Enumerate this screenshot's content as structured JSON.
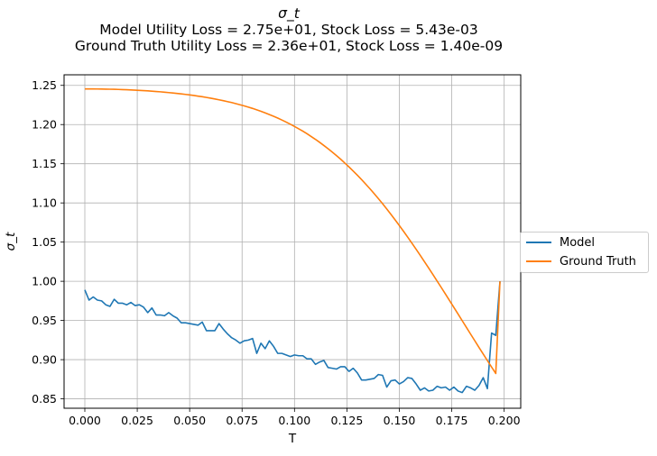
{
  "colors": {
    "model": "#1f77b4",
    "ground_truth": "#ff7f0e",
    "grid": "#b0b0b0"
  },
  "chart_data": {
    "type": "line",
    "title": "σ_t",
    "subtitle_lines": [
      "Model Utility Loss = 2.75e+01, Stock Loss = 5.43e-03",
      "Ground Truth Utility Loss = 2.36e+01, Stock Loss = 1.40e-09"
    ],
    "xlabel": "T",
    "ylabel": "σ_t",
    "xlim": [
      -0.0099,
      0.2079
    ],
    "ylim": [
      0.838,
      1.2635
    ],
    "grid": true,
    "legend_placement": "outside-right",
    "xticks": [
      0.0,
      0.025,
      0.05,
      0.075,
      0.1,
      0.125,
      0.15,
      0.175,
      0.2
    ],
    "xtick_labels": [
      "0.000",
      "0.025",
      "0.050",
      "0.075",
      "0.100",
      "0.125",
      "0.150",
      "0.175",
      "0.200"
    ],
    "yticks": [
      0.85,
      0.9,
      0.95,
      1.0,
      1.05,
      1.1,
      1.15,
      1.2,
      1.25
    ],
    "ytick_labels": [
      "0.85",
      "0.90",
      "0.95",
      "1.00",
      "1.05",
      "1.10",
      "1.15",
      "1.20",
      "1.25"
    ],
    "x": [
      0.0,
      0.002,
      0.004,
      0.006,
      0.008,
      0.01,
      0.012,
      0.014,
      0.016,
      0.018,
      0.02,
      0.022,
      0.024,
      0.026,
      0.028,
      0.03,
      0.032,
      0.034,
      0.036,
      0.038,
      0.04,
      0.042,
      0.044,
      0.046,
      0.048,
      0.05,
      0.052,
      0.054,
      0.056,
      0.058,
      0.06,
      0.062,
      0.064,
      0.066,
      0.068,
      0.07,
      0.072,
      0.074,
      0.076,
      0.078,
      0.08,
      0.082,
      0.084,
      0.086,
      0.088,
      0.09,
      0.092,
      0.094,
      0.096,
      0.098,
      0.1,
      0.102,
      0.104,
      0.106,
      0.108,
      0.11,
      0.112,
      0.114,
      0.116,
      0.118,
      0.12,
      0.122,
      0.124,
      0.126,
      0.128,
      0.13,
      0.132,
      0.134,
      0.136,
      0.138,
      0.14,
      0.142,
      0.144,
      0.146,
      0.148,
      0.15,
      0.152,
      0.154,
      0.156,
      0.158,
      0.16,
      0.162,
      0.164,
      0.166,
      0.168,
      0.17,
      0.172,
      0.174,
      0.176,
      0.178,
      0.18,
      0.182,
      0.184,
      0.186,
      0.188,
      0.19,
      0.192,
      0.194,
      0.196,
      0.198
    ],
    "series": [
      {
        "name": "Model",
        "color": "#1f77b4",
        "values": [
          0.989,
          0.976,
          0.98,
          0.976,
          0.975,
          0.97,
          0.968,
          0.977,
          0.972,
          0.972,
          0.97,
          0.973,
          0.969,
          0.97,
          0.967,
          0.96,
          0.966,
          0.957,
          0.957,
          0.956,
          0.96,
          0.956,
          0.953,
          0.947,
          0.947,
          0.946,
          0.945,
          0.944,
          0.948,
          0.937,
          0.937,
          0.937,
          0.946,
          0.939,
          0.933,
          0.928,
          0.925,
          0.921,
          0.924,
          0.925,
          0.927,
          0.908,
          0.921,
          0.914,
          0.924,
          0.917,
          0.908,
          0.908,
          0.906,
          0.904,
          0.906,
          0.905,
          0.905,
          0.901,
          0.901,
          0.894,
          0.897,
          0.899,
          0.89,
          0.889,
          0.888,
          0.891,
          0.891,
          0.885,
          0.889,
          0.883,
          0.874,
          0.874,
          0.875,
          0.876,
          0.881,
          0.88,
          0.865,
          0.873,
          0.874,
          0.869,
          0.872,
          0.877,
          0.876,
          0.869,
          0.861,
          0.864,
          0.86,
          0.861,
          0.866,
          0.864,
          0.865,
          0.861,
          0.865,
          0.86,
          0.858,
          0.866,
          0.864,
          0.861,
          0.867,
          0.877,
          0.863,
          0.934,
          0.931,
          1.0
        ]
      },
      {
        "name": "Ground Truth",
        "color": "#ff7f0e",
        "values": [
          1.2455,
          1.2455,
          1.2455,
          1.2454,
          1.2453,
          1.2452,
          1.2451,
          1.245,
          1.2448,
          1.2446,
          1.2444,
          1.2442,
          1.2439,
          1.2436,
          1.2433,
          1.243,
          1.2426,
          1.2422,
          1.2418,
          1.2413,
          1.2408,
          1.2403,
          1.2397,
          1.2391,
          1.2385,
          1.2378,
          1.2371,
          1.2363,
          1.2355,
          1.2346,
          1.2337,
          1.2327,
          1.2316,
          1.2305,
          1.2293,
          1.2281,
          1.2267,
          1.2253,
          1.2238,
          1.2222,
          1.2206,
          1.2188,
          1.2169,
          1.2149,
          1.2128,
          1.2106,
          1.2083,
          1.2058,
          1.2032,
          1.2005,
          1.1976,
          1.1946,
          1.1915,
          1.1882,
          1.1847,
          1.1811,
          1.1773,
          1.1733,
          1.1692,
          1.1649,
          1.1604,
          1.1558,
          1.1509,
          1.1459,
          1.1407,
          1.1353,
          1.1297,
          1.1239,
          1.118,
          1.1118,
          1.1055,
          1.099,
          1.0923,
          1.0854,
          1.0784,
          1.0712,
          1.0638,
          1.0563,
          1.0487,
          1.0409,
          1.033,
          1.025,
          1.0169,
          1.0087,
          1.0004,
          0.9921,
          0.9837,
          0.9752,
          0.9667,
          0.9582,
          0.9497,
          0.9411,
          0.9326,
          0.9241,
          0.9156,
          0.9072,
          0.8988,
          0.8905,
          0.8823,
          1.0
        ]
      }
    ]
  }
}
